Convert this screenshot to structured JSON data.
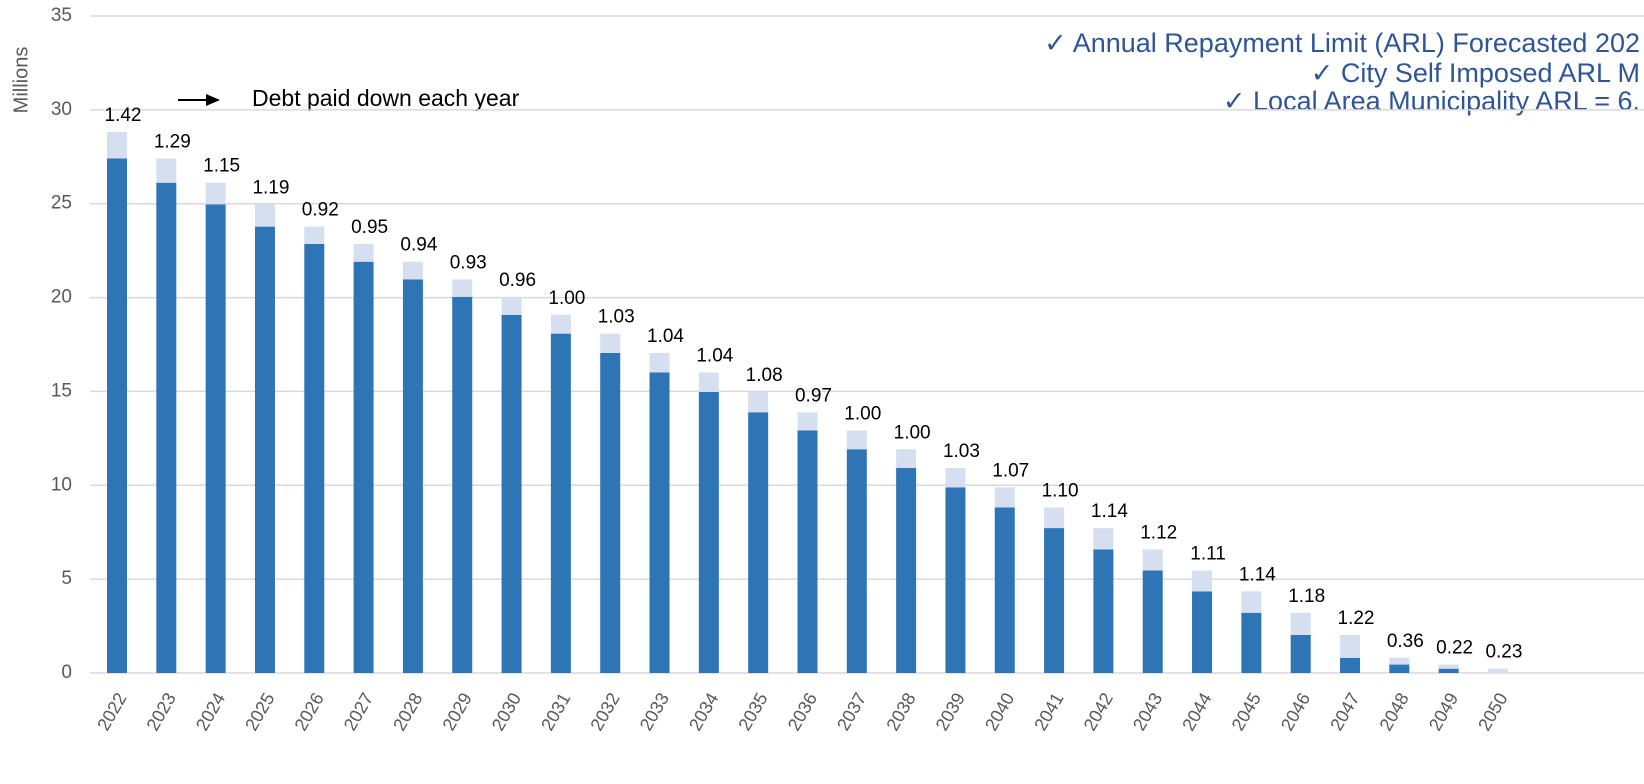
{
  "chart_data": {
    "type": "stacked_bar",
    "y_label": "Millions",
    "annotation": "Debt paid down each year",
    "notes": [
      "✓ Annual Repayment Limit (ARL) Forecasted 202",
      "✓ City Self Imposed ARL M",
      "✓ Local Area Municipality ARL = 6."
    ],
    "categories": [
      "2022",
      "2023",
      "2024",
      "2025",
      "2026",
      "2027",
      "2028",
      "2029",
      "2030",
      "2031",
      "2032",
      "2033",
      "2034",
      "2035",
      "2036",
      "2037",
      "2038",
      "2039",
      "2040",
      "2041",
      "2042",
      "2043",
      "2044",
      "2045",
      "2046",
      "2047",
      "2048",
      "2049",
      "2050"
    ],
    "series": [
      {
        "color": "#2e75b6",
        "values": [
          27.41,
          26.12,
          24.97,
          23.78,
          22.86,
          21.91,
          20.97,
          20.04,
          19.08,
          18.08,
          17.05,
          16.01,
          14.97,
          13.89,
          12.92,
          11.92,
          10.92,
          9.89,
          8.82,
          7.72,
          6.58,
          5.46,
          4.35,
          3.21,
          2.03,
          0.81,
          0.45,
          0.23,
          0
        ]
      },
      {
        "color": "#d5dff0",
        "values": [
          1.42,
          1.29,
          1.15,
          1.19,
          0.92,
          0.95,
          0.94,
          0.93,
          0.96,
          1.0,
          1.03,
          1.04,
          1.04,
          1.08,
          0.97,
          1.0,
          1.0,
          1.03,
          1.07,
          1.1,
          1.14,
          1.12,
          1.11,
          1.14,
          1.18,
          1.22,
          0.36,
          0.22,
          0.23
        ],
        "value_labels": [
          "1.42",
          "1.29",
          "1.15",
          "1.19",
          "0.92",
          "0.95",
          "0.94",
          "0.93",
          "0.96",
          "1.00",
          "1.03",
          "1.04",
          "1.04",
          "1.08",
          "0.97",
          "1.00",
          "1.00",
          "1.03",
          "1.07",
          "1.10",
          "1.14",
          "1.12",
          "1.11",
          "1.14",
          "1.18",
          "1.22",
          "0.36",
          "0.22",
          "0.23"
        ]
      }
    ],
    "ylim": [
      0,
      35
    ],
    "yticks": [
      0,
      5,
      10,
      15,
      20,
      25,
      30,
      35
    ],
    "grid": true
  }
}
